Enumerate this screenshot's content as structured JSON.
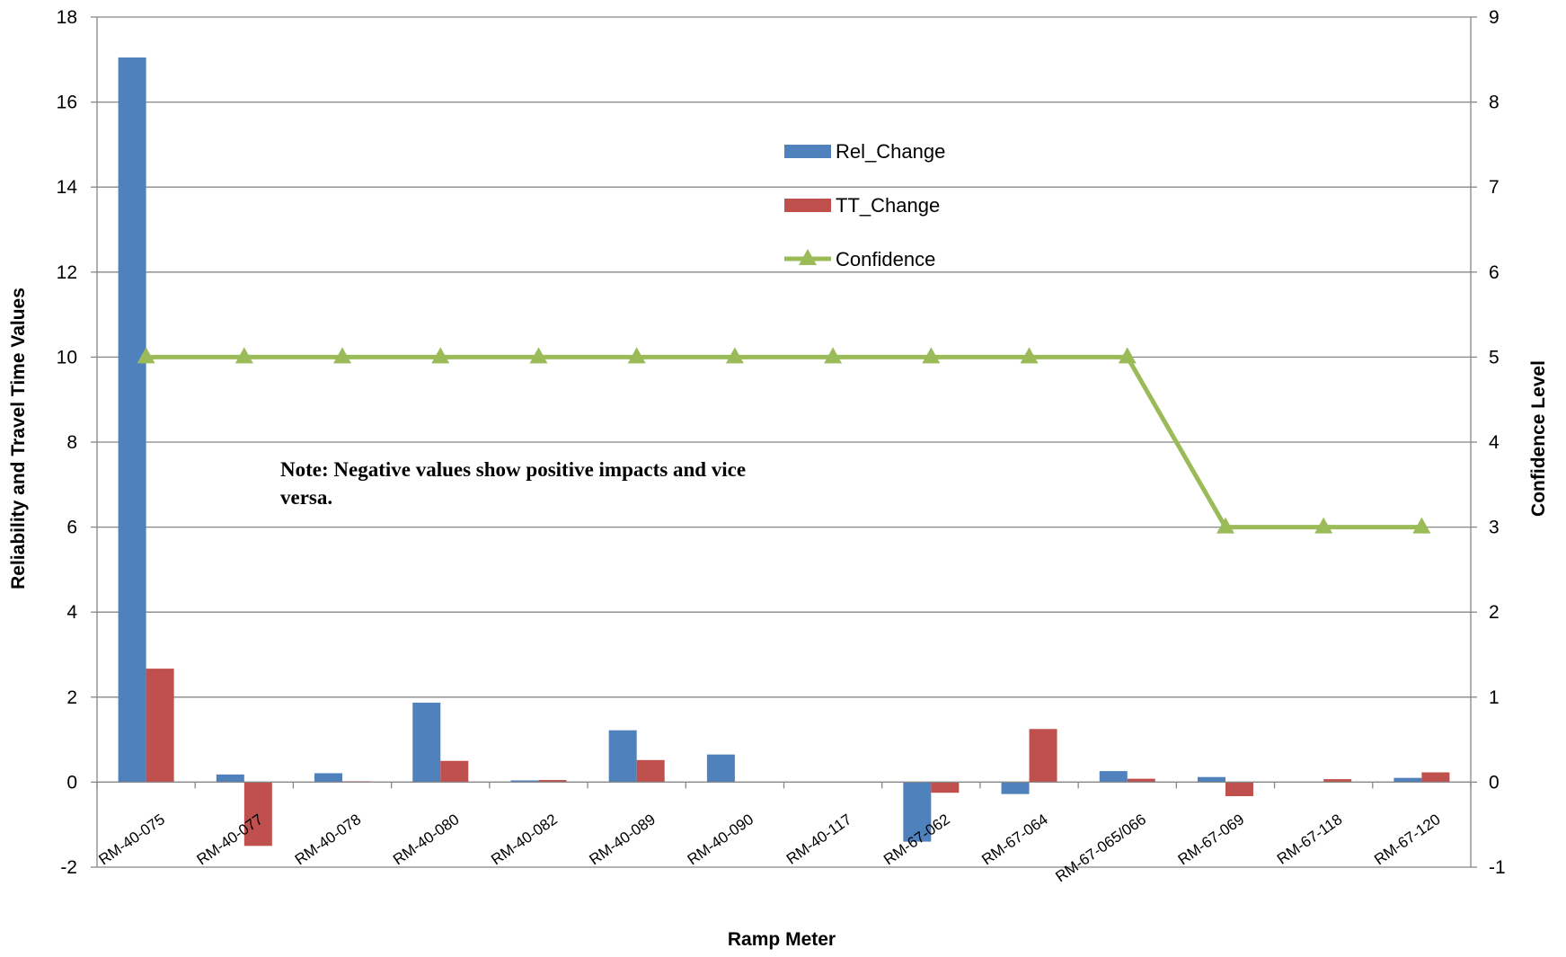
{
  "chart_data": {
    "type": "bar",
    "categories": [
      "RM-40-075",
      "RM-40-077",
      "RM-40-078",
      "RM-40-080",
      "RM-40-082",
      "RM-40-089",
      "RM-40-090",
      "RM-40-117",
      "RM-67-062",
      "RM-67-064",
      "RM-67-065/066",
      "RM-67-069",
      "RM-67-118",
      "RM-67-120"
    ],
    "series": [
      {
        "name": "Rel_Change",
        "type": "bar",
        "axis": "left",
        "color": "#4F81BD",
        "values": [
          17.05,
          0.18,
          0.21,
          1.87,
          0.04,
          1.22,
          0.65,
          0,
          -1.4,
          -0.28,
          0.26,
          0.12,
          0,
          0.1
        ]
      },
      {
        "name": "TT_Change",
        "type": "bar",
        "axis": "left",
        "color": "#C0504D",
        "values": [
          2.67,
          -1.5,
          0.02,
          0.5,
          0.05,
          0.52,
          0,
          0,
          -0.25,
          1.25,
          0.08,
          -0.33,
          0.07,
          0.23
        ]
      },
      {
        "name": "Confidence",
        "type": "line",
        "axis": "right",
        "color": "#9BBB59",
        "marker": "triangle",
        "values": [
          5,
          5,
          5,
          5,
          5,
          5,
          5,
          5,
          5,
          5,
          5,
          3,
          3,
          3
        ]
      }
    ],
    "xlabel": "Ramp Meter",
    "ylabel": "Reliability and Travel Time Values",
    "y2label": "Confidence Level",
    "ylim": [
      -2,
      18
    ],
    "y2lim": [
      -1,
      9
    ],
    "yticks": [
      "-2",
      "0",
      "2",
      "4",
      "6",
      "8",
      "10",
      "12",
      "14",
      "16",
      "18"
    ],
    "y2ticks": [
      "-1",
      "0",
      "1",
      "2",
      "3",
      "4",
      "5",
      "6",
      "7",
      "8",
      "9"
    ],
    "grid": true,
    "legend_position": "top-center",
    "annotation": "Note: Negative values show positive impacts and vice versa."
  }
}
